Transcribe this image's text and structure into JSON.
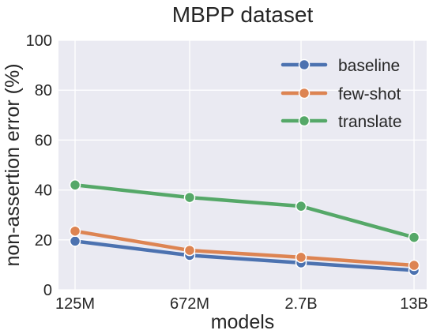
{
  "chart_data": {
    "type": "line",
    "title": "MBPP dataset",
    "xlabel": "models",
    "ylabel": "non-assertion error (%)",
    "categories": [
      "125M",
      "672M",
      "2.7B",
      "13B"
    ],
    "ylim": [
      0,
      100
    ],
    "yticks": [
      0,
      20,
      40,
      60,
      80,
      100
    ],
    "grid": true,
    "legend_position": "top-right",
    "series": [
      {
        "name": "baseline",
        "color": "#4c72b0",
        "values": [
          19.5,
          13.8,
          10.8,
          7.8
        ]
      },
      {
        "name": "few-shot",
        "color": "#dd8452",
        "values": [
          23.5,
          15.8,
          13.0,
          9.8
        ]
      },
      {
        "name": "translate",
        "color": "#55a868",
        "values": [
          42.0,
          37.0,
          33.5,
          21.0
        ]
      }
    ]
  }
}
